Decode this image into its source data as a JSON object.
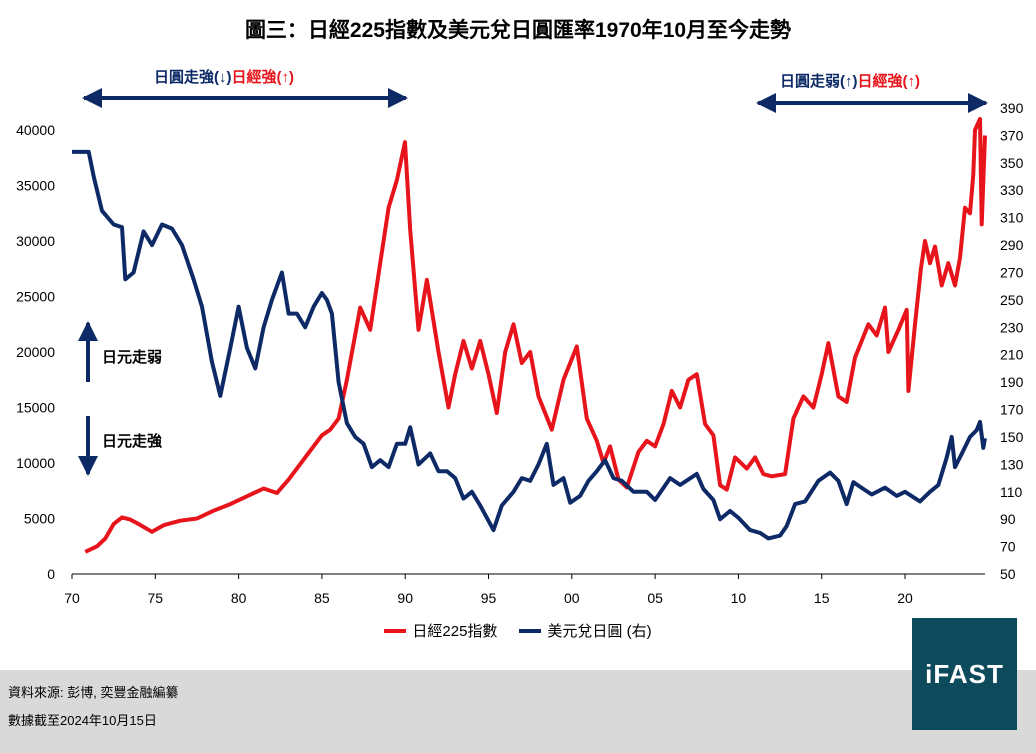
{
  "title": "圖三：日經225指數及美元兌日圓匯率1970年10月至今走勢",
  "annotations": {
    "left": {
      "blue": "日圓走強(↓)",
      "red": "日經強(↑)"
    },
    "right": {
      "blue": "日圓走弱(↑)",
      "red": "日經強(↑)"
    },
    "weak_label": "日元走弱",
    "strong_label": "日元走強"
  },
  "footer": {
    "source": "資料來源: 彭博, 奕豐金融編纂",
    "date": "數據截至2024年10月15日"
  },
  "logo": "iFAST",
  "colors": {
    "nikkei": "#e8141b",
    "usdjpy": "#0d2a66",
    "logo_bg": "#0d4a5c"
  },
  "chart_data": {
    "type": "line",
    "x_ticks": [
      "70",
      "75",
      "80",
      "85",
      "90",
      "95",
      "00",
      "05",
      "10",
      "15",
      "20"
    ],
    "x_tick_years": [
      1970,
      1975,
      1980,
      1985,
      1990,
      1995,
      2000,
      2005,
      2010,
      2015,
      2020
    ],
    "x_range": [
      1970,
      2024.8
    ],
    "y_left": {
      "min": 0,
      "max": 40000,
      "ticks": [
        0,
        5000,
        10000,
        15000,
        20000,
        25000,
        30000,
        35000,
        40000
      ]
    },
    "y_right": {
      "min": 50,
      "max": 390,
      "ticks": [
        50,
        70,
        90,
        110,
        130,
        150,
        170,
        190,
        210,
        230,
        250,
        270,
        290,
        310,
        330,
        350,
        370,
        390
      ]
    },
    "series": [
      {
        "name": "日經225指數",
        "axis": "left",
        "points": [
          [
            1970.8,
            2000
          ],
          [
            1971.5,
            2500
          ],
          [
            1972.0,
            3200
          ],
          [
            1972.5,
            4500
          ],
          [
            1973.0,
            5100
          ],
          [
            1973.5,
            4900
          ],
          [
            1974.0,
            4500
          ],
          [
            1974.8,
            3800
          ],
          [
            1975.5,
            4400
          ],
          [
            1976.5,
            4800
          ],
          [
            1977.5,
            5000
          ],
          [
            1978.5,
            5700
          ],
          [
            1979.5,
            6300
          ],
          [
            1980.5,
            7000
          ],
          [
            1981.5,
            7700
          ],
          [
            1982.3,
            7300
          ],
          [
            1983.0,
            8500
          ],
          [
            1984.0,
            10500
          ],
          [
            1985.0,
            12500
          ],
          [
            1985.5,
            13000
          ],
          [
            1986.0,
            14000
          ],
          [
            1986.5,
            17500
          ],
          [
            1987.3,
            24000
          ],
          [
            1987.9,
            22000
          ],
          [
            1988.5,
            28000
          ],
          [
            1989.0,
            33000
          ],
          [
            1989.5,
            35500
          ],
          [
            1989.99,
            38900
          ],
          [
            1990.3,
            31000
          ],
          [
            1990.8,
            22000
          ],
          [
            1991.3,
            26500
          ],
          [
            1992.0,
            20000
          ],
          [
            1992.6,
            15000
          ],
          [
            1993.0,
            18000
          ],
          [
            1993.5,
            21000
          ],
          [
            1994.0,
            18500
          ],
          [
            1994.5,
            21000
          ],
          [
            1995.0,
            18000
          ],
          [
            1995.5,
            14500
          ],
          [
            1996.0,
            20000
          ],
          [
            1996.5,
            22500
          ],
          [
            1997.0,
            19000
          ],
          [
            1997.5,
            20000
          ],
          [
            1998.0,
            16000
          ],
          [
            1998.8,
            13000
          ],
          [
            1999.5,
            17500
          ],
          [
            2000.3,
            20500
          ],
          [
            2000.9,
            14000
          ],
          [
            2001.5,
            12000
          ],
          [
            2001.9,
            10000
          ],
          [
            2002.3,
            11500
          ],
          [
            2002.8,
            8500
          ],
          [
            2003.3,
            7800
          ],
          [
            2004.0,
            11000
          ],
          [
            2004.5,
            12000
          ],
          [
            2005.0,
            11500
          ],
          [
            2005.5,
            13500
          ],
          [
            2006.0,
            16500
          ],
          [
            2006.5,
            15000
          ],
          [
            2007.0,
            17500
          ],
          [
            2007.5,
            18000
          ],
          [
            2008.0,
            13500
          ],
          [
            2008.5,
            12500
          ],
          [
            2008.9,
            8000
          ],
          [
            2009.3,
            7600
          ],
          [
            2009.8,
            10500
          ],
          [
            2010.5,
            9500
          ],
          [
            2011.0,
            10500
          ],
          [
            2011.5,
            9000
          ],
          [
            2012.0,
            8800
          ],
          [
            2012.8,
            9000
          ],
          [
            2013.3,
            14000
          ],
          [
            2013.9,
            16000
          ],
          [
            2014.5,
            15000
          ],
          [
            2015.0,
            18000
          ],
          [
            2015.4,
            20800
          ],
          [
            2016.0,
            16000
          ],
          [
            2016.5,
            15500
          ],
          [
            2017.0,
            19500
          ],
          [
            2017.8,
            22500
          ],
          [
            2018.3,
            21500
          ],
          [
            2018.8,
            24000
          ],
          [
            2019.0,
            20000
          ],
          [
            2019.6,
            22000
          ],
          [
            2020.1,
            23800
          ],
          [
            2020.2,
            16500
          ],
          [
            2020.6,
            22500
          ],
          [
            2020.95,
            27500
          ],
          [
            2021.2,
            30000
          ],
          [
            2021.5,
            28000
          ],
          [
            2021.8,
            29500
          ],
          [
            2022.2,
            26000
          ],
          [
            2022.6,
            28000
          ],
          [
            2023.0,
            26000
          ],
          [
            2023.3,
            28500
          ],
          [
            2023.6,
            33000
          ],
          [
            2023.9,
            32500
          ],
          [
            2024.1,
            36000
          ],
          [
            2024.2,
            40000
          ],
          [
            2024.5,
            41000
          ],
          [
            2024.6,
            31500
          ],
          [
            2024.8,
            39500
          ]
        ]
      },
      {
        "name": "美元兌日圓 (右)",
        "axis": "right",
        "points": [
          [
            1970.0,
            358
          ],
          [
            1971.0,
            358
          ],
          [
            1971.3,
            340
          ],
          [
            1971.8,
            315
          ],
          [
            1972.5,
            305
          ],
          [
            1973.0,
            303
          ],
          [
            1973.2,
            265
          ],
          [
            1973.7,
            270
          ],
          [
            1974.3,
            300
          ],
          [
            1974.8,
            290
          ],
          [
            1975.4,
            305
          ],
          [
            1976.0,
            302
          ],
          [
            1976.6,
            290
          ],
          [
            1977.3,
            265
          ],
          [
            1977.8,
            245
          ],
          [
            1978.4,
            205
          ],
          [
            1978.9,
            180
          ],
          [
            1979.5,
            215
          ],
          [
            1980.0,
            245
          ],
          [
            1980.5,
            215
          ],
          [
            1981.0,
            200
          ],
          [
            1981.5,
            230
          ],
          [
            1982.0,
            250
          ],
          [
            1982.6,
            270
          ],
          [
            1983.0,
            240
          ],
          [
            1983.5,
            240
          ],
          [
            1984.0,
            230
          ],
          [
            1984.5,
            245
          ],
          [
            1985.0,
            255
          ],
          [
            1985.3,
            250
          ],
          [
            1985.6,
            240
          ],
          [
            1986.0,
            190
          ],
          [
            1986.5,
            160
          ],
          [
            1987.0,
            150
          ],
          [
            1987.5,
            145
          ],
          [
            1988.0,
            128
          ],
          [
            1988.5,
            133
          ],
          [
            1989.0,
            128
          ],
          [
            1989.5,
            145
          ],
          [
            1990.0,
            145
          ],
          [
            1990.3,
            157
          ],
          [
            1990.8,
            130
          ],
          [
            1991.5,
            138
          ],
          [
            1992.0,
            125
          ],
          [
            1992.5,
            125
          ],
          [
            1993.0,
            120
          ],
          [
            1993.5,
            105
          ],
          [
            1994.0,
            110
          ],
          [
            1994.5,
            100
          ],
          [
            1995.3,
            82
          ],
          [
            1995.8,
            100
          ],
          [
            1996.5,
            110
          ],
          [
            1997.0,
            120
          ],
          [
            1997.5,
            118
          ],
          [
            1998.0,
            130
          ],
          [
            1998.5,
            145
          ],
          [
            1998.9,
            115
          ],
          [
            1999.5,
            120
          ],
          [
            1999.9,
            102
          ],
          [
            2000.5,
            107
          ],
          [
            2001.0,
            118
          ],
          [
            2001.5,
            125
          ],
          [
            2002.0,
            133
          ],
          [
            2002.5,
            120
          ],
          [
            2003.0,
            118
          ],
          [
            2003.7,
            110
          ],
          [
            2004.5,
            110
          ],
          [
            2005.0,
            104
          ],
          [
            2005.9,
            120
          ],
          [
            2006.5,
            115
          ],
          [
            2007.5,
            123
          ],
          [
            2007.9,
            112
          ],
          [
            2008.5,
            104
          ],
          [
            2008.9,
            90
          ],
          [
            2009.5,
            96
          ],
          [
            2010.0,
            91
          ],
          [
            2010.7,
            82
          ],
          [
            2011.3,
            80
          ],
          [
            2011.8,
            76
          ],
          [
            2012.5,
            78
          ],
          [
            2012.9,
            85
          ],
          [
            2013.4,
            101
          ],
          [
            2014.0,
            103
          ],
          [
            2014.8,
            118
          ],
          [
            2015.5,
            124
          ],
          [
            2016.0,
            118
          ],
          [
            2016.5,
            101
          ],
          [
            2016.9,
            117
          ],
          [
            2017.5,
            112
          ],
          [
            2018.0,
            108
          ],
          [
            2018.8,
            113
          ],
          [
            2019.5,
            107
          ],
          [
            2020.0,
            110
          ],
          [
            2020.5,
            106
          ],
          [
            2020.9,
            103
          ],
          [
            2021.5,
            110
          ],
          [
            2022.0,
            115
          ],
          [
            2022.5,
            135
          ],
          [
            2022.8,
            150
          ],
          [
            2023.0,
            128
          ],
          [
            2023.5,
            140
          ],
          [
            2023.9,
            150
          ],
          [
            2024.3,
            155
          ],
          [
            2024.5,
            161
          ],
          [
            2024.7,
            142
          ],
          [
            2024.8,
            149
          ]
        ]
      }
    ]
  }
}
